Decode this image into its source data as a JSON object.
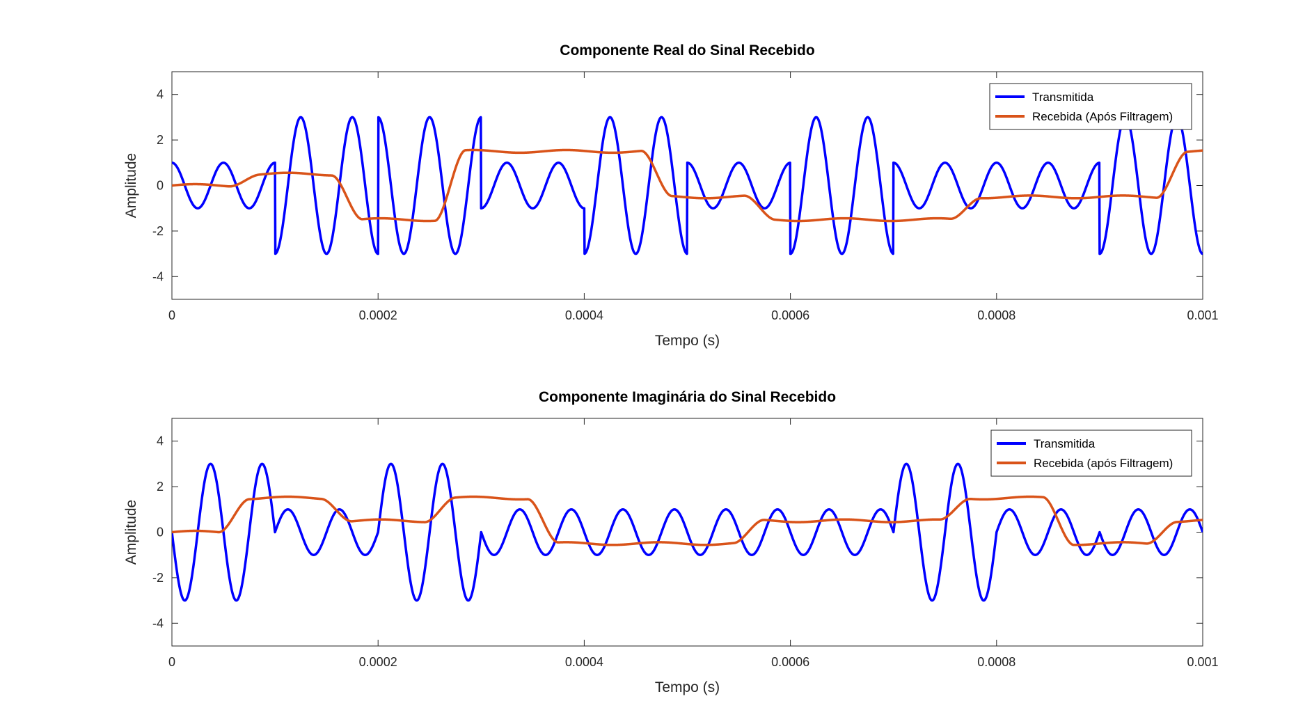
{
  "chart_data": [
    {
      "type": "line",
      "title": "Componente Real do Sinal Recebido",
      "xlabel": "Tempo (s)",
      "ylabel": "Amplitude",
      "xlim": [
        0,
        0.001
      ],
      "ylim": [
        -5,
        5
      ],
      "xticks": [
        0,
        0.0002,
        0.0004,
        0.0006,
        0.0008,
        0.001
      ],
      "xtick_labels": [
        "0",
        "0.0002",
        "0.0004",
        "0.0006",
        "0.0008",
        "0.001"
      ],
      "yticks": [
        -4,
        -2,
        0,
        2,
        4
      ],
      "ytick_labels": [
        "-4",
        "-2",
        "0",
        "2",
        "4"
      ],
      "grid": false,
      "legend_position": "top-right",
      "carrier_cycles_per_symbol": 2,
      "symbol_duration": 0.0001,
      "series": [
        {
          "name": "Transmitida",
          "color": "#0000ff",
          "kind": "symbol_cosine",
          "symbol_amplitudes": [
            1,
            -3,
            3,
            -1,
            -3,
            1,
            -3,
            1,
            1,
            -3
          ]
        },
        {
          "name": "Recebida (Após Filtragem)",
          "color": "#d95319",
          "kind": "filtered_steps",
          "step_levels": [
            0,
            0.5,
            -1.5,
            1.5,
            1.5,
            -0.5,
            -1.5,
            -1.5,
            -0.5,
            -0.5,
            1.5
          ],
          "step_times": [
            0,
            7e-05,
            0.00017,
            0.00027,
            0.00037,
            0.00047,
            0.00057,
            0.00067,
            0.00077,
            0.00087,
            0.00097
          ]
        }
      ]
    },
    {
      "type": "line",
      "title": "Componente Imaginária do Sinal Recebido",
      "xlabel": "Tempo (s)",
      "ylabel": "Amplitude",
      "xlim": [
        0,
        0.001
      ],
      "ylim": [
        -5,
        5
      ],
      "xticks": [
        0,
        0.0002,
        0.0004,
        0.0006,
        0.0008,
        0.001
      ],
      "xtick_labels": [
        "0",
        "0.0002",
        "0.0004",
        "0.0006",
        "0.0008",
        "0.001"
      ],
      "yticks": [
        -4,
        -2,
        0,
        2,
        4
      ],
      "ytick_labels": [
        "-4",
        "-2",
        "0",
        "2",
        "4"
      ],
      "grid": false,
      "legend_position": "top-right",
      "carrier_cycles_per_symbol": 2,
      "symbol_duration": 0.0001,
      "series": [
        {
          "name": "Transmitida",
          "color": "#0000ff",
          "kind": "symbol_sine",
          "symbol_amplitudes": [
            -3,
            1,
            3,
            -1,
            -1,
            -1,
            -1,
            3,
            1,
            -1
          ]
        },
        {
          "name": "Recebida (após Filtragem)",
          "color": "#d95319",
          "kind": "filtered_steps",
          "step_levels": [
            0,
            1.5,
            0.5,
            1.5,
            -0.5,
            -0.5,
            0.5,
            0.5,
            1.5,
            -0.5,
            0.5
          ],
          "step_times": [
            0,
            6e-05,
            0.00016,
            0.00026,
            0.00036,
            0.00046,
            0.00056,
            0.00066,
            0.00076,
            0.00086,
            0.00096
          ]
        }
      ]
    }
  ]
}
